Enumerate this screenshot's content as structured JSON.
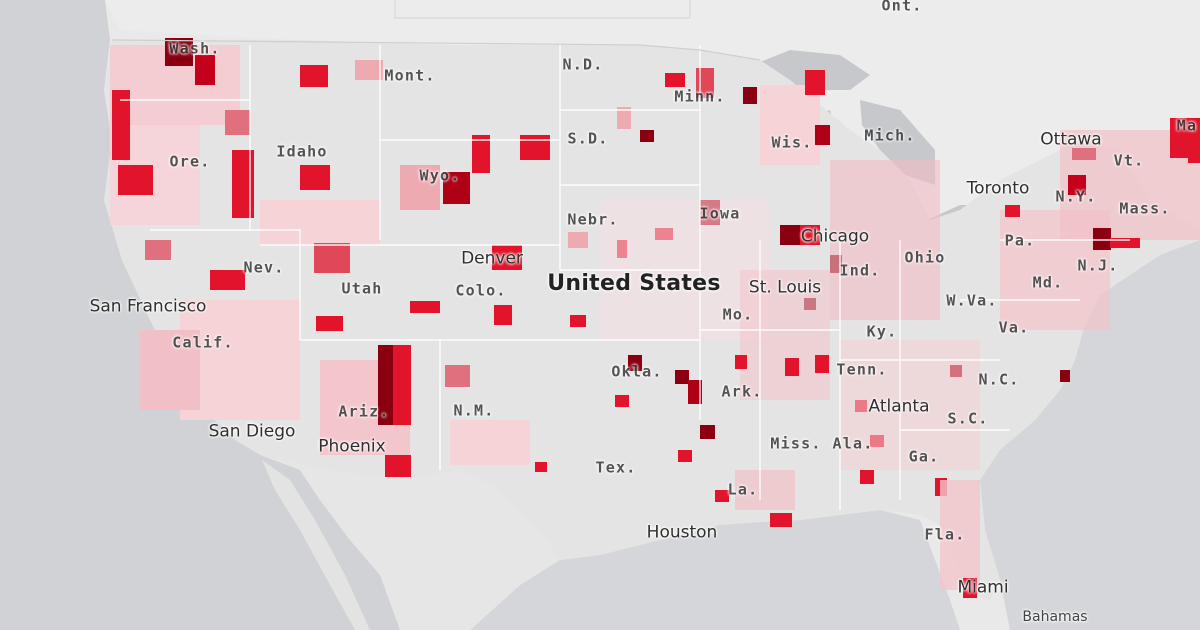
{
  "map": {
    "country_label": "United States",
    "state_labels": [
      "Wash.",
      "Mont.",
      "N.D.",
      "Minn.",
      "Ore.",
      "Idaho",
      "S.D.",
      "Wis.",
      "Mich.",
      "Wyo.",
      "Nebr.",
      "Iowa",
      "Nev.",
      "Utah",
      "Colo.",
      "Calif.",
      "Mo.",
      "Ind.",
      "Ohio",
      "Pa.",
      "N.Y.",
      "Vt.",
      "Mass.",
      "N.J.",
      "Md.",
      "W.Va.",
      "Va.",
      "Ky.",
      "Okla.",
      "Ark.",
      "Tenn.",
      "N.C.",
      "S.C.",
      "Ga.",
      "Ala.",
      "Miss.",
      "Ariz.",
      "N.M.",
      "Tex.",
      "La.",
      "Fla.",
      "Ma"
    ],
    "city_labels": [
      "San Francisco",
      "San Diego",
      "Phoenix",
      "Denver",
      "St. Louis",
      "Chicago",
      "Toronto",
      "Ottawa",
      "Atlanta",
      "Houston",
      "Miami"
    ],
    "other_labels": [
      "Ont.",
      "Bahamas"
    ],
    "colors": {
      "background": "#e9e9e9",
      "land": "#e4e4e4",
      "water": "#c9cbcf",
      "level_1": "#f5d3d6",
      "level_2": "#eeaab1",
      "level_3": "#e0707d",
      "level_4": "#e2142b",
      "level_5": "#8a0011"
    }
  }
}
